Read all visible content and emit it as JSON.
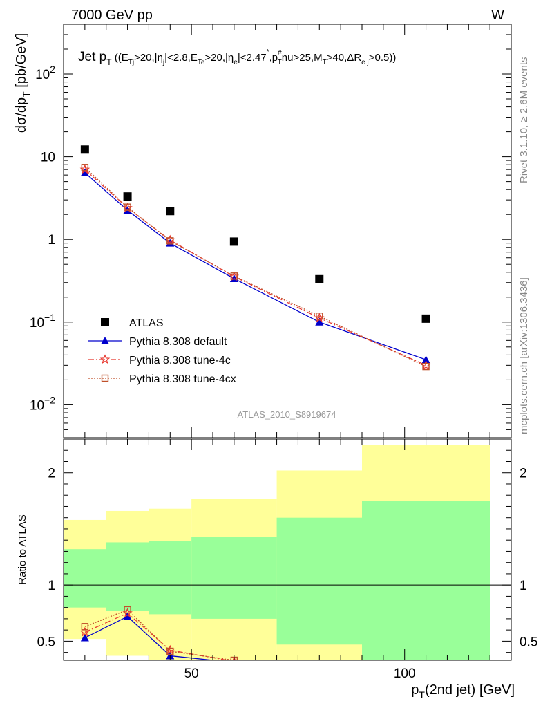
{
  "header": {
    "energy_label": "7000 GeV pp",
    "process_label": "W"
  },
  "side_labels": {
    "rivet": "Rivet 3.1.10, ≥ 2.6M events",
    "mcplots": "mcplots.cern.ch [arXiv:1306.3436]"
  },
  "analysis_id": "ATLAS_2010_S8919674",
  "chart_data": [
    {
      "type": "scatter",
      "panel": "main",
      "title": "Jet pT ((ETj>20,|ηj|<2.8,ETe>20,|ηe|<2.47*,pT#nu>25,MT>40,ΔRej>0.5))",
      "ylabel": "dσ/dpT [pb/GeV]",
      "xlabel": "pT(2nd jet) [GeV]",
      "yscale": "log",
      "xlim": [
        20,
        125
      ],
      "ylim": [
        0.004,
        400
      ],
      "x_ticks": [
        50,
        100
      ],
      "y_ticks": [
        {
          "value": 0.01,
          "base": "10",
          "exp": "−2"
        },
        {
          "value": 0.1,
          "base": "10",
          "exp": "−1"
        },
        {
          "value": 1,
          "base": "1",
          "exp": ""
        },
        {
          "value": 10,
          "base": "10",
          "exp": ""
        },
        {
          "value": 100,
          "base": "10",
          "exp": "2"
        }
      ],
      "legend_position": "bottom-left",
      "series": [
        {
          "name": "ATLAS",
          "color": "#000000",
          "marker": "square-filled",
          "line": "none",
          "x": [
            25,
            35,
            45,
            60,
            80,
            105
          ],
          "y": [
            12.2,
            3.3,
            2.2,
            0.94,
            0.33,
            0.11
          ]
        },
        {
          "name": "Pythia 8.308 default",
          "color": "#0000cc",
          "marker": "triangle-filled",
          "line": "solid",
          "x": [
            25,
            35,
            45,
            60,
            80,
            105
          ],
          "y": [
            6.4,
            2.25,
            0.9,
            0.335,
            0.1,
            0.035
          ]
        },
        {
          "name": "Pythia 8.308 tune-4c",
          "color": "#e8382f",
          "marker": "star-open",
          "line": "dashdot",
          "x": [
            25,
            35,
            45,
            60,
            80,
            105
          ],
          "y": [
            7.0,
            2.4,
            0.98,
            0.355,
            0.112,
            0.03
          ]
        },
        {
          "name": "Pythia 8.308 tune-4cx",
          "color": "#c0502a",
          "marker": "square-open",
          "line": "dotted",
          "x": [
            25,
            35,
            45,
            60,
            80,
            105
          ],
          "y": [
            7.4,
            2.45,
            0.96,
            0.36,
            0.118,
            0.029
          ]
        }
      ]
    },
    {
      "type": "line",
      "panel": "ratio",
      "ylabel": "Ratio to ATLAS",
      "xlabel": "pT(2nd jet) [GeV]",
      "xlim": [
        20,
        125
      ],
      "ylim": [
        0.33,
        2.3
      ],
      "y_ticks": [
        0.5,
        1,
        2
      ],
      "x_ticks": [
        50,
        100
      ],
      "bands": [
        {
          "xlo": 20,
          "xhi": 30,
          "inner_lo": 0.8,
          "inner_hi": 1.32,
          "outer_lo": 0.52,
          "outer_hi": 1.58
        },
        {
          "xlo": 30,
          "xhi": 40,
          "inner_lo": 0.77,
          "inner_hi": 1.38,
          "outer_lo": 0.37,
          "outer_hi": 1.66
        },
        {
          "xlo": 40,
          "xhi": 50,
          "inner_lo": 0.74,
          "inner_hi": 1.39,
          "outer_lo": 0.33,
          "outer_hi": 1.68
        },
        {
          "xlo": 50,
          "xhi": 70,
          "inner_lo": 0.7,
          "inner_hi": 1.43,
          "outer_lo": 0.33,
          "outer_hi": 1.77
        },
        {
          "xlo": 70,
          "xhi": 90,
          "inner_lo": 0.47,
          "inner_hi": 1.6,
          "outer_lo": 0.33,
          "outer_hi": 2.02
        },
        {
          "xlo": 90,
          "xhi": 120,
          "inner_lo": 0.33,
          "inner_hi": 1.75,
          "outer_lo": 0.33,
          "outer_hi": 2.25
        }
      ],
      "band_colors": {
        "inner": "#99ff99",
        "outer": "#ffff99"
      },
      "reference_line": 1,
      "series": [
        {
          "name": "Pythia 8.308 default",
          "color": "#0000cc",
          "marker": "triangle-filled",
          "line": "solid",
          "x": [
            25,
            35,
            45,
            60
          ],
          "y": [
            0.53,
            0.72,
            0.37,
            0.31
          ]
        },
        {
          "name": "Pythia 8.308 tune-4c",
          "color": "#e8382f",
          "marker": "star-open",
          "line": "dashdot",
          "x": [
            25,
            35,
            45,
            60
          ],
          "y": [
            0.58,
            0.75,
            0.42,
            0.32
          ]
        },
        {
          "name": "Pythia 8.308 tune-4cx",
          "color": "#c0502a",
          "marker": "square-open",
          "line": "dotted",
          "x": [
            25,
            35,
            45,
            60
          ],
          "y": [
            0.63,
            0.78,
            0.41,
            0.33
          ]
        }
      ]
    }
  ]
}
